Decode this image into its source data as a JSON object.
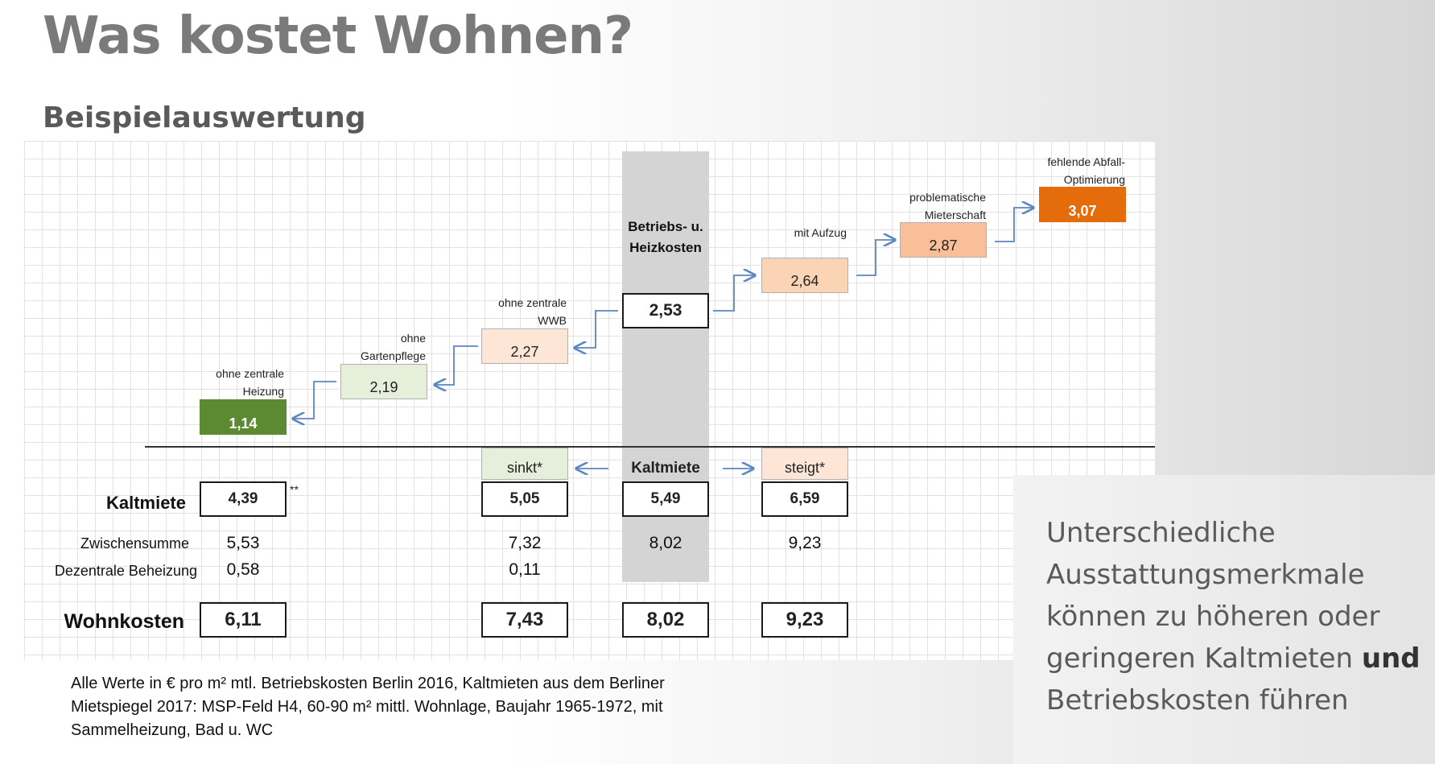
{
  "title": "Was kostet Wohnen?",
  "subtitle": "Beispielauswertung",
  "stair": {
    "ohne_heizung": {
      "label1": "ohne zentrale",
      "label2": "Heizung",
      "value": "1,14",
      "color": "#5c8a32"
    },
    "ohne_garten": {
      "label1": "ohne",
      "label2": "Gartenpflege",
      "value": "2,19",
      "color": "#e6efd9"
    },
    "ohne_wwb": {
      "label1": "ohne zentrale",
      "label2": "WWB",
      "value": "2,27",
      "color": "#fde6d6"
    },
    "center": {
      "label1": "Betriebs- u.",
      "label2": "Heizkosten",
      "value": "2,53"
    },
    "mit_aufzug": {
      "label": "mit Aufzug",
      "value": "2,64",
      "color": "#fbd3b5"
    },
    "mieterschaft": {
      "label1": "problematische",
      "label2": "Mieterschaft",
      "value": "2,87",
      "color": "#f8bf98"
    },
    "abfall": {
      "label1": "fehlende Abfall-",
      "label2": "Optimierung",
      "value": "3,07",
      "color": "#e46c0a"
    }
  },
  "kaltmiete_header": {
    "sinkt": "sinkt*",
    "center": "Kaltmiete",
    "steigt": "steigt*"
  },
  "rows": {
    "kaltmiete": {
      "label": "Kaltmiete",
      "note": "**",
      "c1": "4,39",
      "c2": "5,05",
      "c3": "5,49",
      "c4": "6,59"
    },
    "zwischensumme": {
      "label": "Zwischensumme",
      "c1": "5,53",
      "c2": "7,32",
      "c3": "8,02",
      "c4": "9,23"
    },
    "dezentral": {
      "label": "Dezentrale Beheizung",
      "c1": "0,58",
      "c2": "0,11"
    },
    "wohnkosten": {
      "label": "Wohnkosten",
      "c1": "6,11",
      "c2": "7,43",
      "c3": "8,02",
      "c4": "9,23"
    }
  },
  "footnote": {
    "line1": "Alle Werte in € pro m² mtl.  Betriebskosten Berlin 2016, Kaltmieten aus dem Berliner",
    "line2": "Mietspiegel 2017:  MSP-Feld H4, 60-90 m² mittl. Wohnlage, Baujahr 1965-1972, mit",
    "line3": "Sammelheizung, Bad u. WC"
  },
  "callout": {
    "line1": "Unterschiedliche",
    "line2": "Ausstattungsmerkmale",
    "line3": "können zu höheren oder",
    "line4_a": "geringeren Kaltmieten ",
    "line4_b": "und",
    "line5": "Betriebskosten führen"
  },
  "colors": {
    "arrow": "#5b86c0",
    "title": "#7a7a7a",
    "subtitle": "#5a5a5a"
  }
}
